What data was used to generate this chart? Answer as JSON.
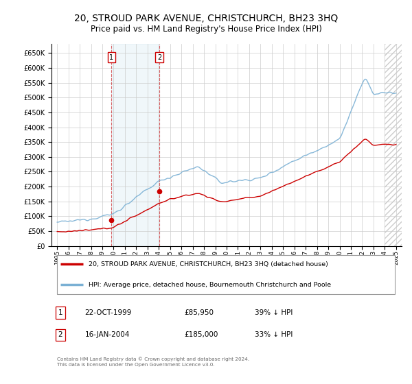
{
  "title": "20, STROUD PARK AVENUE, CHRISTCHURCH, BH23 3HQ",
  "subtitle": "Price paid vs. HM Land Registry's House Price Index (HPI)",
  "title_fontsize": 10,
  "subtitle_fontsize": 8.5,
  "background_color": "#ffffff",
  "plot_bg_color": "#ffffff",
  "grid_color": "#cccccc",
  "hpi_color": "#7ab0d4",
  "price_color": "#cc0000",
  "purchases": [
    {
      "date_num": 1999.81,
      "price": 85950,
      "label": "1"
    },
    {
      "date_num": 2004.04,
      "price": 185000,
      "label": "2"
    }
  ],
  "legend_entries": [
    "20, STROUD PARK AVENUE, CHRISTCHURCH, BH23 3HQ (detached house)",
    "HPI: Average price, detached house, Bournemouth Christchurch and Poole"
  ],
  "table_rows": [
    {
      "num": "1",
      "date": "22-OCT-1999",
      "price": "£85,950",
      "hpi": "39% ↓ HPI"
    },
    {
      "num": "2",
      "date": "16-JAN-2004",
      "price": "£185,000",
      "hpi": "33% ↓ HPI"
    }
  ],
  "footer": "Contains HM Land Registry data © Crown copyright and database right 2024.\nThis data is licensed under the Open Government Licence v3.0.",
  "ylim": [
    0,
    680000
  ],
  "yticks": [
    0,
    50000,
    100000,
    150000,
    200000,
    250000,
    300000,
    350000,
    400000,
    450000,
    500000,
    550000,
    600000,
    650000
  ],
  "shaded_region_blue": [
    1999.81,
    2004.04
  ],
  "shaded_region_hatch": [
    2024.0,
    2025.5
  ],
  "xlim": [
    1994.5,
    2025.5
  ],
  "xtick_start": 1995,
  "xtick_end": 2025
}
